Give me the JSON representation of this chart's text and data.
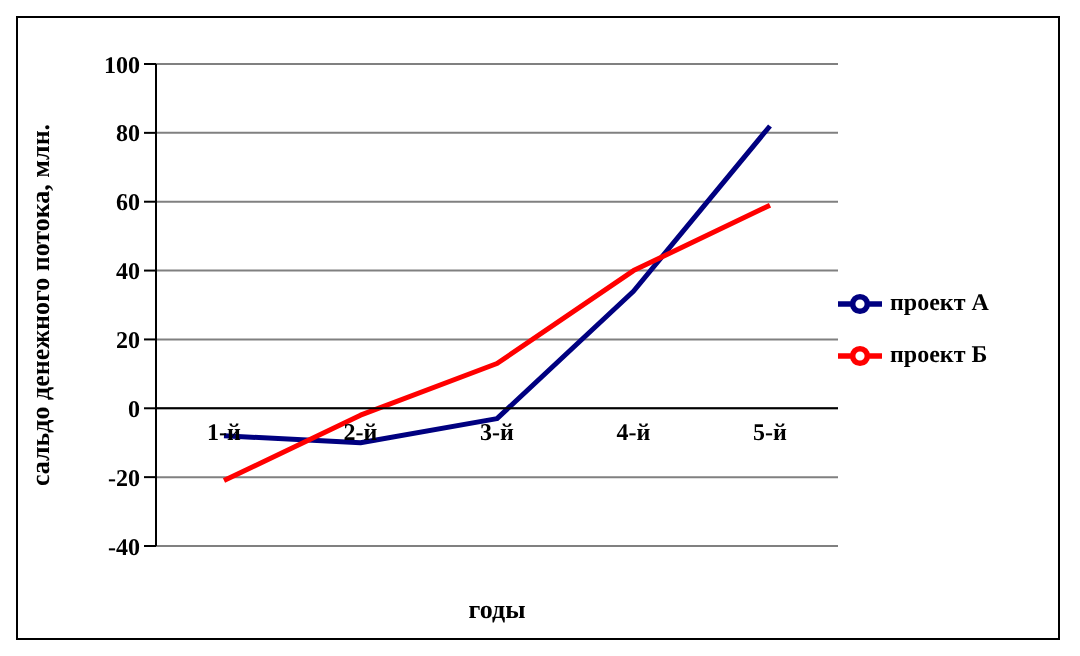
{
  "chart_data": {
    "type": "line",
    "xlabel": "годы",
    "ylabel": "сальдо денежного потока, млн.",
    "categories": [
      "1-й",
      "2-й",
      "3-й",
      "4-й",
      "5-й"
    ],
    "series": [
      {
        "name": "проект А",
        "color": "#000080",
        "values": [
          -8,
          -10,
          -3,
          34,
          82
        ]
      },
      {
        "name": "проект Б",
        "color": "#ff0000",
        "values": [
          -21,
          -2,
          13,
          40,
          59
        ]
      }
    ],
    "ylim": [
      -40,
      100
    ],
    "yticks": [
      -40,
      -20,
      0,
      20,
      40,
      60,
      80,
      100
    ],
    "grid": "y",
    "legend": "right",
    "marker": "none"
  }
}
